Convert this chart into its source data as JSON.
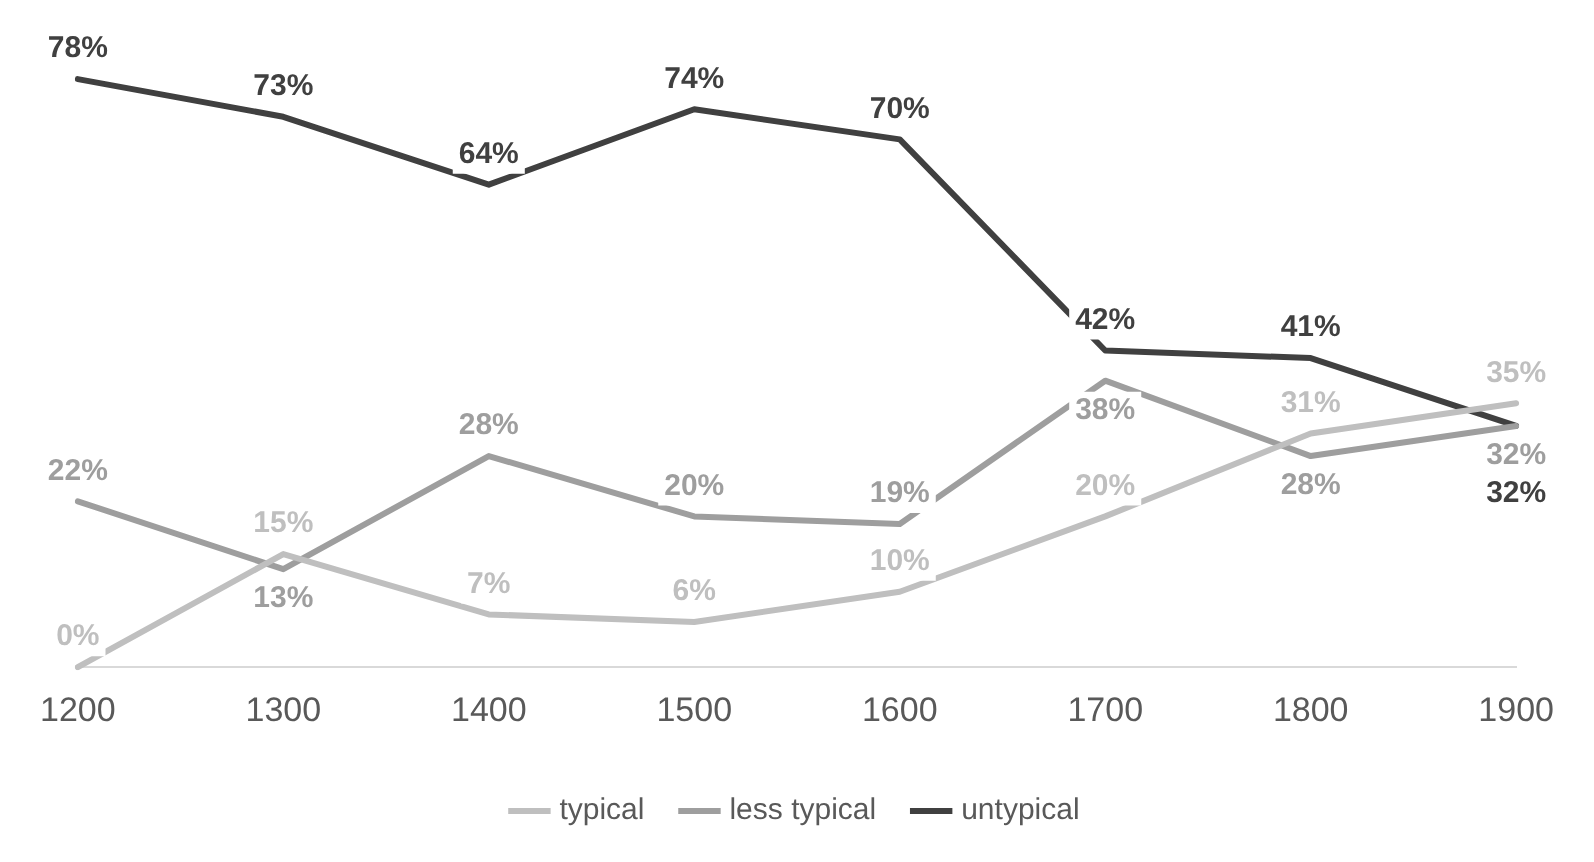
{
  "chart_data": {
    "type": "line",
    "categories": [
      "1200",
      "1300",
      "1400",
      "1500",
      "1600",
      "1700",
      "1800",
      "1900"
    ],
    "series": [
      {
        "name": "typical",
        "color": "#bfbfbf",
        "values": [
          0,
          15,
          7,
          6,
          10,
          20,
          31,
          35
        ],
        "value_labels": [
          "0%",
          "15%",
          "7%",
          "6%",
          "10%",
          "20%",
          "31%",
          "35%"
        ]
      },
      {
        "name": "less typical",
        "color": "#9e9e9e",
        "values": [
          22,
          13,
          28,
          20,
          19,
          38,
          28,
          32
        ],
        "value_labels": [
          "22%",
          "13%",
          "28%",
          "20%",
          "19%",
          "38%",
          "28%",
          "32%"
        ]
      },
      {
        "name": "untypical",
        "color": "#404040",
        "values": [
          78,
          73,
          64,
          74,
          70,
          42,
          41,
          32
        ],
        "value_labels": [
          "78%",
          "73%",
          "64%",
          "74%",
          "70%",
          "42%",
          "41%",
          "32%"
        ]
      }
    ],
    "legend": "bottom",
    "grid": false,
    "marker": "none",
    "line_style": "solid",
    "tick_labels": "x"
  }
}
